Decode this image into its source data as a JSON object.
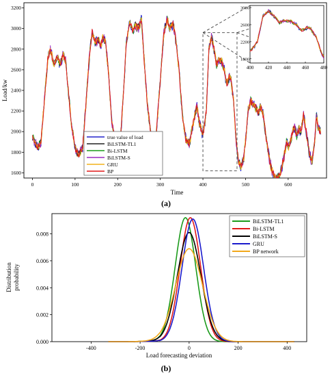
{
  "colors": {
    "true": "#2222cc",
    "tl1": "#222222",
    "bilstm": "#1a9a1a",
    "bilstms": "#9a2ac0",
    "gru": "#f2b21a",
    "bp": "#e01818",
    "dist_tl1": "#1a9a1a",
    "dist_bilstm": "#e01818",
    "dist_s": "#000000",
    "dist_gru": "#1a1acc",
    "dist_bp": "#f2a81a"
  },
  "chart_data": [
    {
      "type": "line",
      "caption": "(a)",
      "xlabel": "Time",
      "ylabel": "Load/kw",
      "xlim": [
        -20,
        690
      ],
      "ylim": [
        1550,
        3250
      ],
      "xticks": [
        "0",
        "100",
        "200",
        "300",
        "400",
        "500",
        "600"
      ],
      "yticks": [
        "1600",
        "1800",
        "2000",
        "2200",
        "2400",
        "2600",
        "2800",
        "3000",
        "3200"
      ],
      "legend": [
        "true value of load",
        "BiLSTM-TL1",
        "Bi-LSTM",
        "BiLSTM-S",
        "GRU",
        "BP"
      ],
      "legend_position": "lower-left",
      "zoom_window": {
        "x": [
          400,
          480
        ],
        "y": [
          1620,
          2960
        ]
      },
      "anchors": [
        [
          0,
          1950
        ],
        [
          12,
          1840
        ],
        [
          20,
          1900
        ],
        [
          28,
          2300
        ],
        [
          36,
          2700
        ],
        [
          42,
          2800
        ],
        [
          50,
          2650
        ],
        [
          58,
          2720
        ],
        [
          66,
          2650
        ],
        [
          72,
          2750
        ],
        [
          78,
          2680
        ],
        [
          84,
          2400
        ],
        [
          92,
          2050
        ],
        [
          100,
          1850
        ],
        [
          108,
          1770
        ],
        [
          118,
          1850
        ],
        [
          126,
          2300
        ],
        [
          134,
          2750
        ],
        [
          140,
          2960
        ],
        [
          148,
          2860
        ],
        [
          154,
          2900
        ],
        [
          160,
          2830
        ],
        [
          166,
          2920
        ],
        [
          172,
          2860
        ],
        [
          178,
          2600
        ],
        [
          186,
          2100
        ],
        [
          196,
          1860
        ],
        [
          206,
          1900
        ],
        [
          214,
          2400
        ],
        [
          220,
          2850
        ],
        [
          228,
          3060
        ],
        [
          236,
          2980
        ],
        [
          242,
          3030
        ],
        [
          248,
          3000
        ],
        [
          256,
          3080
        ],
        [
          262,
          2700
        ],
        [
          270,
          2250
        ],
        [
          278,
          1970
        ],
        [
          284,
          1870
        ],
        [
          290,
          1950
        ],
        [
          300,
          2500
        ],
        [
          308,
          2950
        ],
        [
          316,
          3090
        ],
        [
          322,
          3000
        ],
        [
          330,
          3050
        ],
        [
          336,
          2900
        ],
        [
          344,
          2600
        ],
        [
          352,
          2150
        ],
        [
          360,
          1920
        ],
        [
          368,
          1880
        ],
        [
          378,
          2100
        ],
        [
          386,
          2250
        ],
        [
          392,
          2080
        ],
        [
          400,
          1960
        ],
        [
          408,
          2200
        ],
        [
          414,
          2800
        ],
        [
          420,
          2920
        ],
        [
          426,
          2800
        ],
        [
          432,
          2650
        ],
        [
          438,
          2700
        ],
        [
          444,
          2680
        ],
        [
          450,
          2600
        ],
        [
          456,
          2460
        ],
        [
          462,
          2540
        ],
        [
          466,
          2500
        ],
        [
          472,
          2300
        ],
        [
          478,
          1900
        ],
        [
          484,
          1700
        ],
        [
          490,
          1660
        ],
        [
          496,
          1750
        ],
        [
          502,
          2000
        ],
        [
          506,
          2200
        ],
        [
          512,
          2300
        ],
        [
          518,
          2270
        ],
        [
          524,
          2230
        ],
        [
          530,
          2180
        ],
        [
          536,
          2250
        ],
        [
          542,
          2150
        ],
        [
          548,
          1950
        ],
        [
          556,
          1730
        ],
        [
          562,
          1620
        ],
        [
          568,
          1560
        ],
        [
          574,
          1540
        ],
        [
          582,
          1600
        ],
        [
          590,
          1750
        ],
        [
          596,
          1900
        ],
        [
          602,
          1850
        ],
        [
          608,
          1950
        ],
        [
          614,
          2050
        ],
        [
          620,
          1960
        ],
        [
          626,
          2030
        ],
        [
          630,
          2000
        ],
        [
          636,
          2170
        ],
        [
          640,
          2050
        ],
        [
          646,
          1900
        ],
        [
          650,
          1780
        ],
        [
          656,
          1700
        ],
        [
          662,
          1900
        ],
        [
          666,
          2150
        ],
        [
          670,
          2050
        ],
        [
          676,
          1990
        ]
      ],
      "inset": {
        "xlim": [
          400,
          480
        ],
        "ylim": [
          1700,
          3050
        ],
        "xticks": [
          "400",
          "420",
          "440",
          "460",
          "480"
        ],
        "yticks": [
          "1800",
          "2200",
          "2600",
          "3000"
        ]
      }
    },
    {
      "type": "line",
      "caption": "(b)",
      "xlabel": "Load forecasting deviation",
      "ylabel_lines": [
        "Distribution",
        "probability"
      ],
      "xlim": [
        -560,
        480
      ],
      "ylim": [
        0,
        0.0095
      ],
      "xticks": [
        "-400",
        "-200",
        "0",
        "200",
        "400"
      ],
      "yticks": [
        "0.000",
        "0.002",
        "0.004",
        "0.006",
        "0.008"
      ],
      "legend": [
        "BiLSTM-TL1",
        "Bi-LSTM",
        "BiLSTM-S",
        "GRU",
        "BP network"
      ],
      "legend_position": "top-right",
      "series": [
        {
          "name": "BiLSTM-TL1",
          "peak": 0.0092,
          "mu": -15,
          "sigma": 42
        },
        {
          "name": "Bi-LSTM",
          "peak": 0.0092,
          "mu": 5,
          "sigma": 42
        },
        {
          "name": "BiLSTM-S",
          "peak": 0.0081,
          "mu": 0,
          "sigma": 48
        },
        {
          "name": "GRU",
          "peak": 0.0091,
          "mu": 15,
          "sigma": 44
        },
        {
          "name": "BP network",
          "peak": 0.0069,
          "mu": 0,
          "sigma": 55
        }
      ]
    }
  ]
}
